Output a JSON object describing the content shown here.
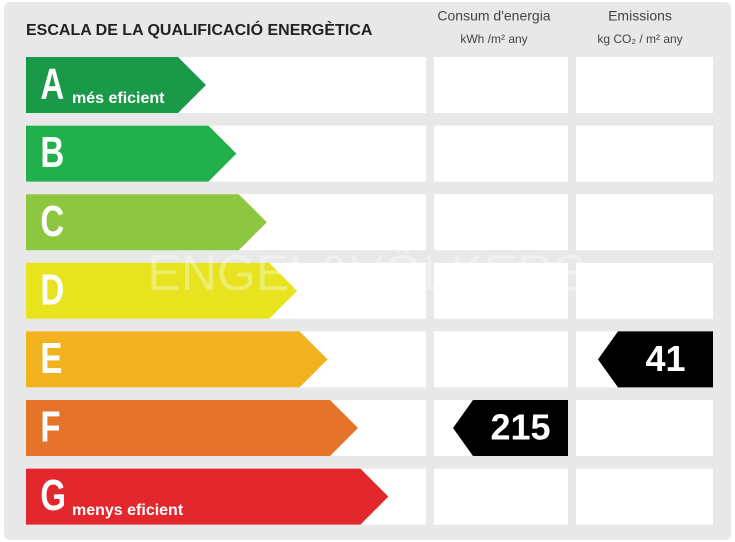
{
  "title": "ESCALA DE LA QUALIFICACIÓ ENERGÈTICA",
  "columns": [
    {
      "label": "Consum d'energia",
      "unit": "kWh /m² any"
    },
    {
      "label": "Emissions",
      "unit": "kg CO₂ / m² any"
    }
  ],
  "ratings": [
    {
      "letter": "A",
      "note": "més eficient",
      "color": "#1a9a48"
    },
    {
      "letter": "B",
      "color": "#21b04b"
    },
    {
      "letter": "C",
      "color": "#8dc63f"
    },
    {
      "letter": "D",
      "color": "#e7e41f"
    },
    {
      "letter": "E",
      "color": "#f2b11f"
    },
    {
      "letter": "F",
      "color": "#e5742a"
    },
    {
      "letter": "G",
      "note": "menys eficient",
      "color": "#e2282c"
    }
  ],
  "readings": [
    {
      "rating": "F",
      "value": 215
    },
    {
      "rating": "E",
      "value": 41
    }
  ],
  "watermark": "ENGEL&VÖLKERS"
}
